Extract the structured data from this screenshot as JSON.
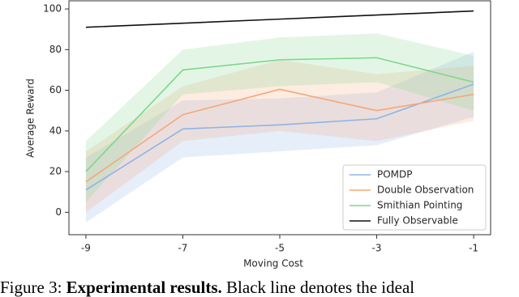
{
  "chart_data": {
    "type": "line",
    "xlabel": "Moving Cost",
    "ylabel": "Average Reward",
    "x": [
      -9,
      -7,
      -5,
      -3,
      -1
    ],
    "xlim": [
      -9.35,
      -0.65
    ],
    "xticks": [
      -9,
      -7,
      -5,
      -3,
      -1
    ],
    "ylim": [
      -11,
      104
    ],
    "yticks": [
      0,
      20,
      40,
      60,
      80,
      100
    ],
    "legend": "lower right",
    "series": [
      {
        "name": "POMDP",
        "color": "#8fb3e6",
        "values": [
          11,
          41,
          43,
          46,
          63
        ],
        "lower": [
          -5,
          27,
          30,
          33,
          47
        ],
        "upper": [
          27,
          55,
          56,
          59,
          79
        ]
      },
      {
        "name": "Double Observation",
        "color": "#f5a778",
        "values": [
          15,
          48,
          60.5,
          50,
          58
        ],
        "lower": [
          0,
          35,
          40,
          35,
          45
        ],
        "upper": [
          30,
          62,
          75,
          68,
          72
        ]
      },
      {
        "name": "Smithian Pointing",
        "color": "#7ed68b",
        "values": [
          20,
          70,
          75,
          76,
          64
        ],
        "lower": [
          5,
          58,
          62,
          64,
          50
        ],
        "upper": [
          35,
          80,
          86,
          88,
          77
        ]
      },
      {
        "name": "Fully Observable",
        "color": "#111111",
        "values": [
          91,
          93,
          95,
          97,
          99
        ]
      }
    ]
  },
  "caption": {
    "label": "Figure 3:",
    "bold": "Experimental results.",
    "text": "Black line denotes the ideal"
  }
}
